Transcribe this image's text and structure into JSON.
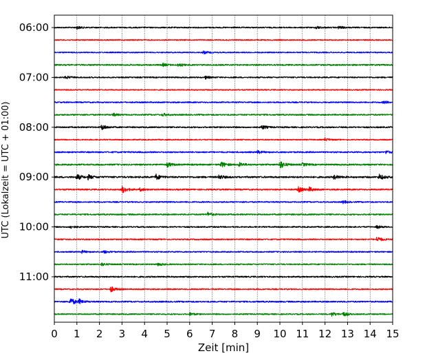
{
  "chart_data": {
    "type": "line",
    "subtype": "seismogram-helicorder",
    "xlabel": "Zeit  [min]",
    "ylabel": "UTC (Lokalzeit = UTC + 01:00)",
    "xlim": [
      0,
      15
    ],
    "x_ticks": [
      "0",
      "1",
      "2",
      "3",
      "4",
      "5",
      "6",
      "7",
      "8",
      "9",
      "10",
      "11",
      "12",
      "13",
      "14",
      "15"
    ],
    "y_tick_labels": [
      "06:00",
      "07:00",
      "08:00",
      "09:00",
      "10:00",
      "11:00"
    ],
    "grid": "vertical dotted lines at every minute",
    "trace_colors": [
      "#000000",
      "#ff0000",
      "#0000ff",
      "#008000"
    ],
    "rows": [
      {
        "start": "06:00",
        "color": "#000000",
        "noise": 0.9,
        "events": [
          {
            "min": 1.0,
            "amp": 2
          },
          {
            "min": 11.6,
            "amp": 2
          },
          {
            "min": 12.6,
            "amp": 2
          }
        ]
      },
      {
        "start": "06:15",
        "color": "#ff0000",
        "noise": 0.8,
        "events": []
      },
      {
        "start": "06:30",
        "color": "#0000ff",
        "noise": 0.8,
        "events": [
          {
            "min": 6.6,
            "amp": 2
          }
        ]
      },
      {
        "start": "06:45",
        "color": "#008000",
        "noise": 1.0,
        "events": [
          {
            "min": 4.8,
            "amp": 2
          },
          {
            "min": 5.5,
            "amp": 2
          }
        ]
      },
      {
        "start": "07:00",
        "color": "#000000",
        "noise": 0.9,
        "events": [
          {
            "min": 0.5,
            "amp": 2
          },
          {
            "min": 6.7,
            "amp": 2
          }
        ]
      },
      {
        "start": "07:15",
        "color": "#ff0000",
        "noise": 0.8,
        "events": []
      },
      {
        "start": "07:30",
        "color": "#0000ff",
        "noise": 0.9,
        "events": [
          {
            "min": 14.6,
            "amp": 2
          }
        ]
      },
      {
        "start": "07:45",
        "color": "#008000",
        "noise": 1.0,
        "events": [
          {
            "min": 2.6,
            "amp": 2
          },
          {
            "min": 4.8,
            "amp": 2
          }
        ]
      },
      {
        "start": "08:00",
        "color": "#000000",
        "noise": 1.0,
        "events": [
          {
            "min": 2.1,
            "amp": 4
          },
          {
            "min": 9.2,
            "amp": 3
          }
        ]
      },
      {
        "start": "08:15",
        "color": "#ff0000",
        "noise": 0.8,
        "events": [
          {
            "min": 12.0,
            "amp": 2
          }
        ]
      },
      {
        "start": "08:30",
        "color": "#0000ff",
        "noise": 1.0,
        "events": [
          {
            "min": 9.0,
            "amp": 2
          },
          {
            "min": 14.7,
            "amp": 2
          }
        ]
      },
      {
        "start": "08:45",
        "color": "#008000",
        "noise": 1.1,
        "events": [
          {
            "min": 5.0,
            "amp": 3
          },
          {
            "min": 7.4,
            "amp": 4
          },
          {
            "min": 8.2,
            "amp": 3
          },
          {
            "min": 10.0,
            "amp": 6
          },
          {
            "min": 11.0,
            "amp": 2
          }
        ]
      },
      {
        "start": "09:00",
        "color": "#000000",
        "noise": 1.2,
        "events": [
          {
            "min": 1.0,
            "amp": 4
          },
          {
            "min": 1.5,
            "amp": 3
          },
          {
            "min": 4.5,
            "amp": 4
          },
          {
            "min": 7.3,
            "amp": 3
          },
          {
            "min": 12.4,
            "amp": 3
          },
          {
            "min": 14.4,
            "amp": 4
          }
        ]
      },
      {
        "start": "09:15",
        "color": "#ff0000",
        "noise": 1.0,
        "events": [
          {
            "min": 3.0,
            "amp": 5
          },
          {
            "min": 3.8,
            "amp": 2
          },
          {
            "min": 10.8,
            "amp": 4
          },
          {
            "min": 11.3,
            "amp": 3
          }
        ]
      },
      {
        "start": "09:30",
        "color": "#0000ff",
        "noise": 0.9,
        "events": [
          {
            "min": 12.8,
            "amp": 2
          }
        ]
      },
      {
        "start": "09:45",
        "color": "#008000",
        "noise": 1.0,
        "events": [
          {
            "min": 6.8,
            "amp": 3
          }
        ]
      },
      {
        "start": "10:00",
        "color": "#000000",
        "noise": 0.9,
        "events": [
          {
            "min": 0.7,
            "amp": 2
          },
          {
            "min": 14.3,
            "amp": 2
          }
        ]
      },
      {
        "start": "10:15",
        "color": "#ff0000",
        "noise": 0.9,
        "events": [
          {
            "min": 14.3,
            "amp": 4
          }
        ]
      },
      {
        "start": "10:30",
        "color": "#0000ff",
        "noise": 0.9,
        "events": [
          {
            "min": 1.2,
            "amp": 2
          },
          {
            "min": 2.2,
            "amp": 2
          }
        ]
      },
      {
        "start": "10:45",
        "color": "#008000",
        "noise": 0.9,
        "events": [
          {
            "min": 2.1,
            "amp": 2
          },
          {
            "min": 4.6,
            "amp": 2
          }
        ]
      },
      {
        "start": "11:00",
        "color": "#000000",
        "noise": 1.0,
        "events": []
      },
      {
        "start": "11:15",
        "color": "#ff0000",
        "noise": 0.9,
        "events": [
          {
            "min": 2.5,
            "amp": 4
          }
        ]
      },
      {
        "start": "11:30",
        "color": "#0000ff",
        "noise": 1.0,
        "events": [
          {
            "min": 0.7,
            "amp": 6
          },
          {
            "min": 1.1,
            "amp": 3
          }
        ]
      },
      {
        "start": "11:45",
        "color": "#008000",
        "noise": 0.9,
        "events": [
          {
            "min": 6.0,
            "amp": 2
          },
          {
            "min": 12.3,
            "amp": 3
          },
          {
            "min": 12.8,
            "amp": 3
          }
        ]
      }
    ]
  }
}
